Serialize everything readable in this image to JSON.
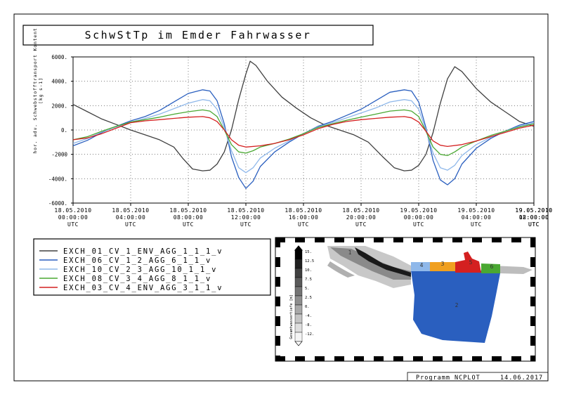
{
  "title": "SchwStTp im Emder Fahrwasser",
  "footer": {
    "program": "Programm NCPLOT",
    "date": "14.06.2017"
  },
  "chart_data": {
    "type": "line",
    "title": "SchwStTp im Emder Fahrwasser",
    "ylabel_lines": [
      "hor. adv. Schwebstofftransport Kontent",
      "[kg s-1]"
    ],
    "ylim": [
      -6000,
      6000
    ],
    "yticks": [
      6000,
      4000,
      2000,
      0,
      -2000,
      -4000,
      -6000
    ],
    "ytick_labels": [
      "6000.",
      "4000.",
      "2000.",
      "0.",
      "-2000",
      "-4000.",
      "-6000."
    ],
    "xlim": [
      0,
      32
    ],
    "xtick_hours": [
      0,
      4,
      8,
      12,
      16,
      20,
      24,
      28,
      32,
      36
    ],
    "xtick_labels": [
      [
        "18.05.2010",
        "00:00:00",
        "UTC"
      ],
      [
        "18.05.2010",
        "04:00:00",
        "UTC"
      ],
      [
        "18.05.2010",
        "08:00:00",
        "UTC"
      ],
      [
        "18.05.2010",
        "12:00:00",
        "UTC"
      ],
      [
        "18.05.2010",
        "16:00:00",
        "UTC"
      ],
      [
        "18.05.2010",
        "20:00:00",
        "UTC"
      ],
      [
        "19.05.2010",
        "00:00:00",
        "UTC"
      ],
      [
        "19.05.2010",
        "04:00:00",
        "UTC"
      ],
      [
        "19.05.2010",
        "08:00:00",
        "UTC"
      ],
      [
        "19.05.2010",
        "12:00:00",
        "UTC"
      ]
    ],
    "grid": true,
    "legend_position": "bottom-left",
    "series": [
      {
        "name": "EXCH_01_CV_1_ENV_AGG_1_1_1_v",
        "color": "#404040",
        "points": [
          [
            0,
            2100
          ],
          [
            1,
            1500
          ],
          [
            2,
            900
          ],
          [
            3,
            450
          ],
          [
            4,
            0
          ],
          [
            5,
            -400
          ],
          [
            6,
            -800
          ],
          [
            7,
            -1400
          ],
          [
            7.6,
            -2300
          ],
          [
            8.3,
            -3200
          ],
          [
            9,
            -3350
          ],
          [
            9.5,
            -3300
          ],
          [
            10,
            -2800
          ],
          [
            10.5,
            -1800
          ],
          [
            11,
            0
          ],
          [
            11.5,
            2500
          ],
          [
            12,
            4600
          ],
          [
            12.3,
            5650
          ],
          [
            12.7,
            5300
          ],
          [
            13.5,
            4000
          ],
          [
            14.5,
            2700
          ],
          [
            15.5,
            1800
          ],
          [
            16.5,
            1000
          ],
          [
            17.5,
            400
          ],
          [
            18.5,
            0
          ],
          [
            19.5,
            -400
          ],
          [
            20.5,
            -1000
          ],
          [
            21.5,
            -2200
          ],
          [
            22.3,
            -3100
          ],
          [
            23,
            -3350
          ],
          [
            23.5,
            -3300
          ],
          [
            24,
            -2900
          ],
          [
            24.5,
            -2000
          ],
          [
            25,
            -200
          ],
          [
            25.5,
            2200
          ],
          [
            26,
            4200
          ],
          [
            26.5,
            5200
          ],
          [
            27,
            4800
          ],
          [
            28,
            3400
          ],
          [
            29,
            2300
          ],
          [
            30,
            1500
          ],
          [
            31,
            700
          ],
          [
            32,
            300
          ]
        ]
      },
      {
        "name": "EXCH_06_CV_1_2_AGG_6_1_1_v",
        "color": "#2a5fbf",
        "points": [
          [
            0,
            -1300
          ],
          [
            1,
            -850
          ],
          [
            2,
            -200
          ],
          [
            3,
            300
          ],
          [
            4,
            750
          ],
          [
            5,
            1100
          ],
          [
            6,
            1600
          ],
          [
            7,
            2300
          ],
          [
            8,
            3000
          ],
          [
            9,
            3300
          ],
          [
            9.5,
            3200
          ],
          [
            10,
            2400
          ],
          [
            10.5,
            500
          ],
          [
            11,
            -2200
          ],
          [
            11.5,
            -3900
          ],
          [
            12,
            -4800
          ],
          [
            12.5,
            -4200
          ],
          [
            13,
            -3000
          ],
          [
            14,
            -1800
          ],
          [
            15,
            -1000
          ],
          [
            16,
            -300
          ],
          [
            17,
            300
          ],
          [
            18,
            700
          ],
          [
            19,
            1200
          ],
          [
            20,
            1700
          ],
          [
            21,
            2400
          ],
          [
            22,
            3100
          ],
          [
            23,
            3300
          ],
          [
            23.5,
            3200
          ],
          [
            24,
            2300
          ],
          [
            24.5,
            200
          ],
          [
            25,
            -2500
          ],
          [
            25.5,
            -4100
          ],
          [
            26,
            -4500
          ],
          [
            26.5,
            -4000
          ],
          [
            27,
            -2800
          ],
          [
            28,
            -1500
          ],
          [
            29,
            -700
          ],
          [
            30,
            -100
          ],
          [
            31,
            400
          ],
          [
            32,
            700
          ]
        ]
      },
      {
        "name": "EXCH_10_CV_2_3_AGG_10_1_1_v",
        "color": "#8fb8ea",
        "points": [
          [
            0,
            -1100
          ],
          [
            1,
            -700
          ],
          [
            2,
            -150
          ],
          [
            3,
            250
          ],
          [
            4,
            650
          ],
          [
            5,
            950
          ],
          [
            6,
            1300
          ],
          [
            7,
            1750
          ],
          [
            8,
            2200
          ],
          [
            9,
            2500
          ],
          [
            9.5,
            2400
          ],
          [
            10,
            1700
          ],
          [
            10.5,
            200
          ],
          [
            11,
            -1700
          ],
          [
            11.5,
            -3100
          ],
          [
            12,
            -3500
          ],
          [
            12.5,
            -3100
          ],
          [
            13,
            -2300
          ],
          [
            14,
            -1500
          ],
          [
            15,
            -900
          ],
          [
            16,
            -300
          ],
          [
            17,
            250
          ],
          [
            18,
            600
          ],
          [
            19,
            1000
          ],
          [
            20,
            1400
          ],
          [
            21,
            1800
          ],
          [
            22,
            2300
          ],
          [
            23,
            2500
          ],
          [
            23.5,
            2400
          ],
          [
            24,
            1700
          ],
          [
            24.5,
            0
          ],
          [
            25,
            -1900
          ],
          [
            25.5,
            -3100
          ],
          [
            26,
            -3300
          ],
          [
            26.5,
            -2900
          ],
          [
            27,
            -2100
          ],
          [
            28,
            -1200
          ],
          [
            29,
            -600
          ],
          [
            30,
            -100
          ],
          [
            31,
            300
          ],
          [
            32,
            600
          ]
        ]
      },
      {
        "name": "EXCH_08_CV_3_4_AGG_8_1_1_v",
        "color": "#4aa832",
        "points": [
          [
            0,
            -800
          ],
          [
            1,
            -550
          ],
          [
            2,
            -100
          ],
          [
            3,
            300
          ],
          [
            4,
            650
          ],
          [
            5,
            850
          ],
          [
            6,
            1050
          ],
          [
            7,
            1300
          ],
          [
            8,
            1500
          ],
          [
            9,
            1650
          ],
          [
            9.5,
            1550
          ],
          [
            10,
            1100
          ],
          [
            10.5,
            0
          ],
          [
            11,
            -1200
          ],
          [
            11.5,
            -1800
          ],
          [
            12,
            -1900
          ],
          [
            12.5,
            -1700
          ],
          [
            13,
            -1400
          ],
          [
            14,
            -1100
          ],
          [
            15,
            -750
          ],
          [
            16,
            -300
          ],
          [
            17,
            200
          ],
          [
            18,
            500
          ],
          [
            19,
            800
          ],
          [
            20,
            1050
          ],
          [
            21,
            1300
          ],
          [
            22,
            1550
          ],
          [
            23,
            1650
          ],
          [
            23.5,
            1550
          ],
          [
            24,
            1100
          ],
          [
            24.5,
            -100
          ],
          [
            25,
            -1400
          ],
          [
            25.5,
            -2000
          ],
          [
            26,
            -2100
          ],
          [
            26.5,
            -1800
          ],
          [
            27,
            -1400
          ],
          [
            28,
            -900
          ],
          [
            29,
            -450
          ],
          [
            30,
            -100
          ],
          [
            31,
            250
          ],
          [
            32,
            500
          ]
        ]
      },
      {
        "name": "EXCH_03_CV_4_ENV_AGG_3_1_1_v",
        "color": "#d42020",
        "points": [
          [
            0,
            -800
          ],
          [
            1,
            -650
          ],
          [
            2,
            -300
          ],
          [
            3,
            150
          ],
          [
            4,
            600
          ],
          [
            5,
            750
          ],
          [
            6,
            850
          ],
          [
            7,
            950
          ],
          [
            8,
            1050
          ],
          [
            9,
            1100
          ],
          [
            9.5,
            1000
          ],
          [
            10,
            700
          ],
          [
            10.5,
            0
          ],
          [
            11,
            -800
          ],
          [
            11.5,
            -1250
          ],
          [
            12,
            -1400
          ],
          [
            13,
            -1300
          ],
          [
            14,
            -1100
          ],
          [
            15,
            -800
          ],
          [
            16,
            -400
          ],
          [
            17,
            100
          ],
          [
            18,
            450
          ],
          [
            19,
            700
          ],
          [
            20,
            850
          ],
          [
            21,
            950
          ],
          [
            22,
            1050
          ],
          [
            23,
            1100
          ],
          [
            23.5,
            1000
          ],
          [
            24,
            650
          ],
          [
            24.5,
            -100
          ],
          [
            25,
            -900
          ],
          [
            25.5,
            -1250
          ],
          [
            26,
            -1350
          ],
          [
            27,
            -1200
          ],
          [
            28,
            -900
          ],
          [
            29,
            -550
          ],
          [
            30,
            -200
          ],
          [
            31,
            150
          ],
          [
            32,
            400
          ]
        ]
      }
    ]
  },
  "map_inset": {
    "colorbar_label": "Gesamtwassertiefe [m]",
    "colorbar_labels": [
      "15.",
      "12.5",
      "10.",
      "7.5",
      "5.",
      "2.5",
      "0.",
      "-4.",
      "-8.",
      "-12."
    ],
    "regions": [
      {
        "label": "1",
        "color": "#2a5fbf"
      },
      {
        "label": "2",
        "color": "#2a5fbf"
      },
      {
        "label": "3",
        "color": "#f0a020"
      },
      {
        "label": "4",
        "color": "#8fb8ea"
      },
      {
        "label": "5",
        "color": "#d42020"
      },
      {
        "label": "6",
        "color": "#4aa832"
      }
    ]
  }
}
